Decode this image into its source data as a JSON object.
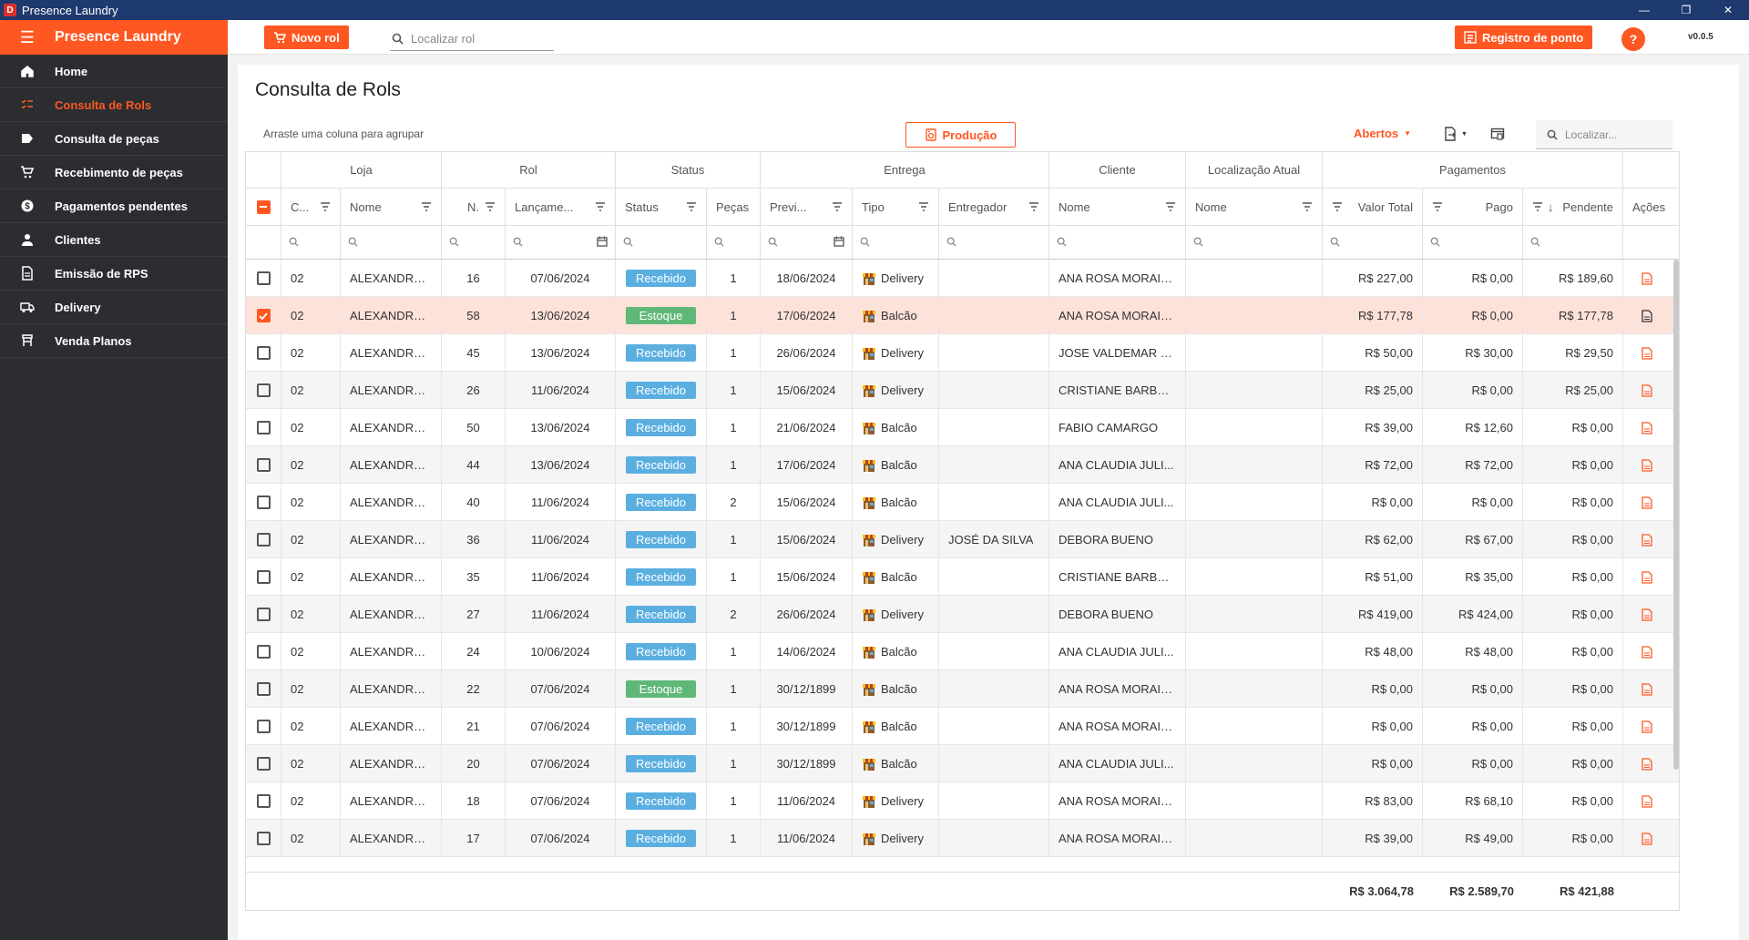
{
  "window": {
    "title": "Presence Laundry",
    "app_letter": "D"
  },
  "sidebar": {
    "brand": "Presence Laundry",
    "items": [
      {
        "label": "Home",
        "icon": "home-icon",
        "active": false
      },
      {
        "label": "Consulta de Rols",
        "icon": "checklist-icon",
        "active": true
      },
      {
        "label": "Consulta de peças",
        "icon": "tag-icon",
        "active": false
      },
      {
        "label": "Recebimento de peças",
        "icon": "cart-icon",
        "active": false
      },
      {
        "label": "Pagamentos pendentes",
        "icon": "dollar-icon",
        "active": false
      },
      {
        "label": "Clientes",
        "icon": "person-icon",
        "active": false
      },
      {
        "label": "Emissão de RPS",
        "icon": "document-icon",
        "active": false
      },
      {
        "label": "Delivery",
        "icon": "truck-icon",
        "active": false
      },
      {
        "label": "Venda Planos",
        "icon": "plan-icon",
        "active": false
      }
    ]
  },
  "topbar": {
    "new_rol_label": "Novo rol",
    "search_placeholder": "Localizar rol",
    "clock_label": "Registro de ponto",
    "help_label": "?",
    "version": "v0.0.5"
  },
  "page": {
    "title": "Consulta de Rols",
    "group_hint": "Arraste uma coluna para agrupar",
    "producao_label": "Produção",
    "filter_label": "Abertos",
    "grid_search_placeholder": "Localizar..."
  },
  "grid": {
    "groups": [
      "Loja",
      "Rol",
      "Status",
      "Entrega",
      "Cliente",
      "Localização Atual",
      "Pagamentos"
    ],
    "columns": [
      "C...",
      "Nome",
      "N.",
      "Lançame...",
      "Status",
      "Peças",
      "Previ...",
      "Tipo",
      "Entregador",
      "Nome",
      "Nome",
      "Valor Total",
      "Pago",
      "Pendente",
      "Ações"
    ],
    "rows": [
      {
        "cod": "02",
        "loja": "ALEXANDRE ...",
        "n": "16",
        "lanc": "07/06/2024",
        "status": "Recebido",
        "pecas": "1",
        "prev": "18/06/2024",
        "tipo": "Delivery",
        "entregador": "",
        "cliente": "ANA ROSA MORAIS ...",
        "local": "",
        "total": "R$ 227,00",
        "pago": "R$ 0,00",
        "pend": "R$ 189,60",
        "checked": false
      },
      {
        "cod": "02",
        "loja": "ALEXANDRE ...",
        "n": "58",
        "lanc": "13/06/2024",
        "status": "Estoque",
        "pecas": "1",
        "prev": "17/06/2024",
        "tipo": "Balcão",
        "entregador": "",
        "cliente": "ANA ROSA MORAIS ...",
        "local": "",
        "total": "R$ 177,78",
        "pago": "R$ 0,00",
        "pend": "R$ 177,78",
        "checked": true
      },
      {
        "cod": "02",
        "loja": "ALEXANDRE ...",
        "n": "45",
        "lanc": "13/06/2024",
        "status": "Recebido",
        "pecas": "1",
        "prev": "26/06/2024",
        "tipo": "Delivery",
        "entregador": "",
        "cliente": "JOSE VALDEMAR D...",
        "local": "",
        "total": "R$ 50,00",
        "pago": "R$ 30,00",
        "pend": "R$ 29,50",
        "checked": false
      },
      {
        "cod": "02",
        "loja": "ALEXANDRE ...",
        "n": "26",
        "lanc": "11/06/2024",
        "status": "Recebido",
        "pecas": "1",
        "prev": "15/06/2024",
        "tipo": "Delivery",
        "entregador": "",
        "cliente": "CRISTIANE BARBOSA",
        "local": "",
        "total": "R$ 25,00",
        "pago": "R$ 0,00",
        "pend": "R$ 25,00",
        "checked": false
      },
      {
        "cod": "02",
        "loja": "ALEXANDRE ...",
        "n": "50",
        "lanc": "13/06/2024",
        "status": "Recebido",
        "pecas": "1",
        "prev": "21/06/2024",
        "tipo": "Balcão",
        "entregador": "",
        "cliente": "FABIO CAMARGO",
        "local": "",
        "total": "R$ 39,00",
        "pago": "R$ 12,60",
        "pend": "R$ 0,00",
        "checked": false
      },
      {
        "cod": "02",
        "loja": "ALEXANDRE ...",
        "n": "44",
        "lanc": "13/06/2024",
        "status": "Recebido",
        "pecas": "1",
        "prev": "17/06/2024",
        "tipo": "Balcão",
        "entregador": "",
        "cliente": "ANA CLAUDIA JULI...",
        "local": "",
        "total": "R$ 72,00",
        "pago": "R$ 72,00",
        "pend": "R$ 0,00",
        "checked": false
      },
      {
        "cod": "02",
        "loja": "ALEXANDRE ...",
        "n": "40",
        "lanc": "11/06/2024",
        "status": "Recebido",
        "pecas": "2",
        "prev": "15/06/2024",
        "tipo": "Balcão",
        "entregador": "",
        "cliente": "ANA CLAUDIA JULI...",
        "local": "",
        "total": "R$ 0,00",
        "pago": "R$ 0,00",
        "pend": "R$ 0,00",
        "checked": false
      },
      {
        "cod": "02",
        "loja": "ALEXANDRE ...",
        "n": "36",
        "lanc": "11/06/2024",
        "status": "Recebido",
        "pecas": "1",
        "prev": "15/06/2024",
        "tipo": "Delivery",
        "entregador": "JOSÉ DA SILVA",
        "cliente": "DEBORA BUENO",
        "local": "",
        "total": "R$ 62,00",
        "pago": "R$ 67,00",
        "pend": "R$ 0,00",
        "checked": false
      },
      {
        "cod": "02",
        "loja": "ALEXANDRE ...",
        "n": "35",
        "lanc": "11/06/2024",
        "status": "Recebido",
        "pecas": "1",
        "prev": "15/06/2024",
        "tipo": "Balcão",
        "entregador": "",
        "cliente": "CRISTIANE BARBOSA",
        "local": "",
        "total": "R$ 51,00",
        "pago": "R$ 35,00",
        "pend": "R$ 0,00",
        "checked": false
      },
      {
        "cod": "02",
        "loja": "ALEXANDRE ...",
        "n": "27",
        "lanc": "11/06/2024",
        "status": "Recebido",
        "pecas": "2",
        "prev": "26/06/2024",
        "tipo": "Delivery",
        "entregador": "",
        "cliente": "DEBORA BUENO",
        "local": "",
        "total": "R$ 419,00",
        "pago": "R$ 424,00",
        "pend": "R$ 0,00",
        "checked": false
      },
      {
        "cod": "02",
        "loja": "ALEXANDRE ...",
        "n": "24",
        "lanc": "10/06/2024",
        "status": "Recebido",
        "pecas": "1",
        "prev": "14/06/2024",
        "tipo": "Balcão",
        "entregador": "",
        "cliente": "ANA CLAUDIA JULI...",
        "local": "",
        "total": "R$ 48,00",
        "pago": "R$ 48,00",
        "pend": "R$ 0,00",
        "checked": false
      },
      {
        "cod": "02",
        "loja": "ALEXANDRE ...",
        "n": "22",
        "lanc": "07/06/2024",
        "status": "Estoque",
        "pecas": "1",
        "prev": "30/12/1899",
        "tipo": "Balcão",
        "entregador": "",
        "cliente": "ANA ROSA MORAIS ...",
        "local": "",
        "total": "R$ 0,00",
        "pago": "R$ 0,00",
        "pend": "R$ 0,00",
        "checked": false
      },
      {
        "cod": "02",
        "loja": "ALEXANDRE ...",
        "n": "21",
        "lanc": "07/06/2024",
        "status": "Recebido",
        "pecas": "1",
        "prev": "30/12/1899",
        "tipo": "Balcão",
        "entregador": "",
        "cliente": "ANA ROSA MORAIS ...",
        "local": "",
        "total": "R$ 0,00",
        "pago": "R$ 0,00",
        "pend": "R$ 0,00",
        "checked": false
      },
      {
        "cod": "02",
        "loja": "ALEXANDRE ...",
        "n": "20",
        "lanc": "07/06/2024",
        "status": "Recebido",
        "pecas": "1",
        "prev": "30/12/1899",
        "tipo": "Balcão",
        "entregador": "",
        "cliente": "ANA CLAUDIA JULI...",
        "local": "",
        "total": "R$ 0,00",
        "pago": "R$ 0,00",
        "pend": "R$ 0,00",
        "checked": false
      },
      {
        "cod": "02",
        "loja": "ALEXANDRE ...",
        "n": "18",
        "lanc": "07/06/2024",
        "status": "Recebido",
        "pecas": "1",
        "prev": "11/06/2024",
        "tipo": "Delivery",
        "entregador": "",
        "cliente": "ANA ROSA MORAIS ...",
        "local": "",
        "total": "R$ 83,00",
        "pago": "R$ 68,10",
        "pend": "R$ 0,00",
        "checked": false
      },
      {
        "cod": "02",
        "loja": "ALEXANDRE ...",
        "n": "17",
        "lanc": "07/06/2024",
        "status": "Recebido",
        "pecas": "1",
        "prev": "11/06/2024",
        "tipo": "Delivery",
        "entregador": "",
        "cliente": "ANA ROSA MORAIS ...",
        "local": "",
        "total": "R$ 39,00",
        "pago": "R$ 49,00",
        "pend": "R$ 0,00",
        "checked": false
      }
    ],
    "totals": {
      "total": "R$ 3.064,78",
      "pago": "R$ 2.589,70",
      "pend": "R$ 421,88"
    }
  },
  "colors": {
    "accent": "#ff5722",
    "sidebar": "#2b2d31",
    "titlebar": "#1e3a6e",
    "recebido": "#5bafe0",
    "estoque": "#5fb878"
  }
}
